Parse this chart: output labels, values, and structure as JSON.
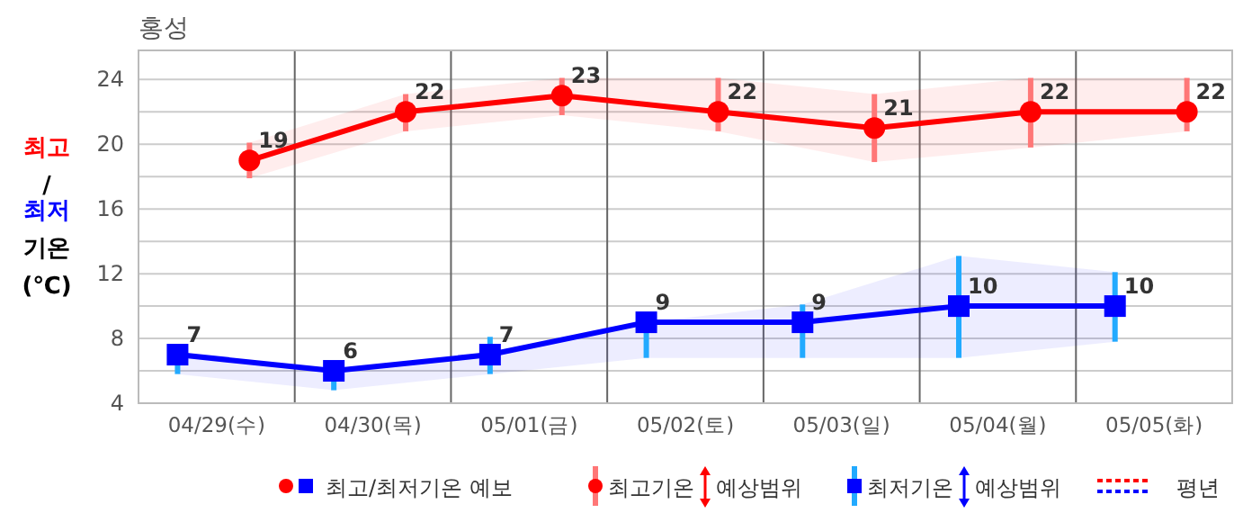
{
  "chart_data": {
    "type": "line",
    "title": "홍성",
    "ylabel": "최고/최저 기온 (℃)",
    "categories": [
      "04/29(수)",
      "04/30(목)",
      "05/01(금)",
      "05/02(토)",
      "05/03(일)",
      "05/04(월)",
      "05/05(화)"
    ],
    "ylim": [
      4,
      25.8
    ],
    "yticks": [
      4,
      {
        "value": 6,
        "label": null
      },
      8,
      {
        "value": 10,
        "label": null
      },
      12,
      {
        "value": 14,
        "label": null
      },
      16,
      {
        "value": 18,
        "label": null
      },
      20,
      {
        "value": 22,
        "label": null
      },
      24
    ],
    "grid": true,
    "data_labels": true,
    "line_style": "solid",
    "series": [
      {
        "color": "#ff0000",
        "marker": "circle",
        "values": [
          19,
          22,
          23,
          22,
          21,
          22,
          22
        ],
        "errors": [
          [
            17.9,
            20.1
          ],
          [
            20.8,
            23.1
          ],
          [
            21.8,
            24.1
          ],
          [
            20.8,
            24.1
          ],
          [
            18.9,
            23.1
          ],
          [
            19.8,
            24.1
          ],
          [
            20.8,
            24.1
          ]
        ],
        "lower": [
          17.9,
          20.8,
          21.8,
          20.8,
          18.9,
          19.8,
          20.8
        ],
        "upper": [
          20.1,
          23.1,
          24.1,
          24.1,
          23.1,
          24.1,
          24.1
        ]
      },
      {
        "color": "#0000ff",
        "marker": "square",
        "values": [
          7,
          6,
          7,
          9,
          9,
          10,
          10
        ],
        "errors": [
          [
            5.8,
            7
          ],
          [
            4.8,
            6
          ],
          [
            5.8,
            8.1
          ],
          [
            6.8,
            9
          ],
          [
            6.8,
            10.1
          ],
          [
            6.8,
            13.1
          ],
          [
            7.8,
            12.1
          ]
        ],
        "lower": [
          5.8,
          4.8,
          5.8,
          6.8,
          6.8,
          6.8,
          7.8
        ],
        "upper": [
          7,
          6,
          7,
          9,
          10.1,
          13.1,
          12.1
        ]
      }
    ],
    "annotations": [
      "최고/최저기온 예보",
      "최고기온 예상범위",
      "최저기온 예상범위",
      "평년"
    ]
  }
}
